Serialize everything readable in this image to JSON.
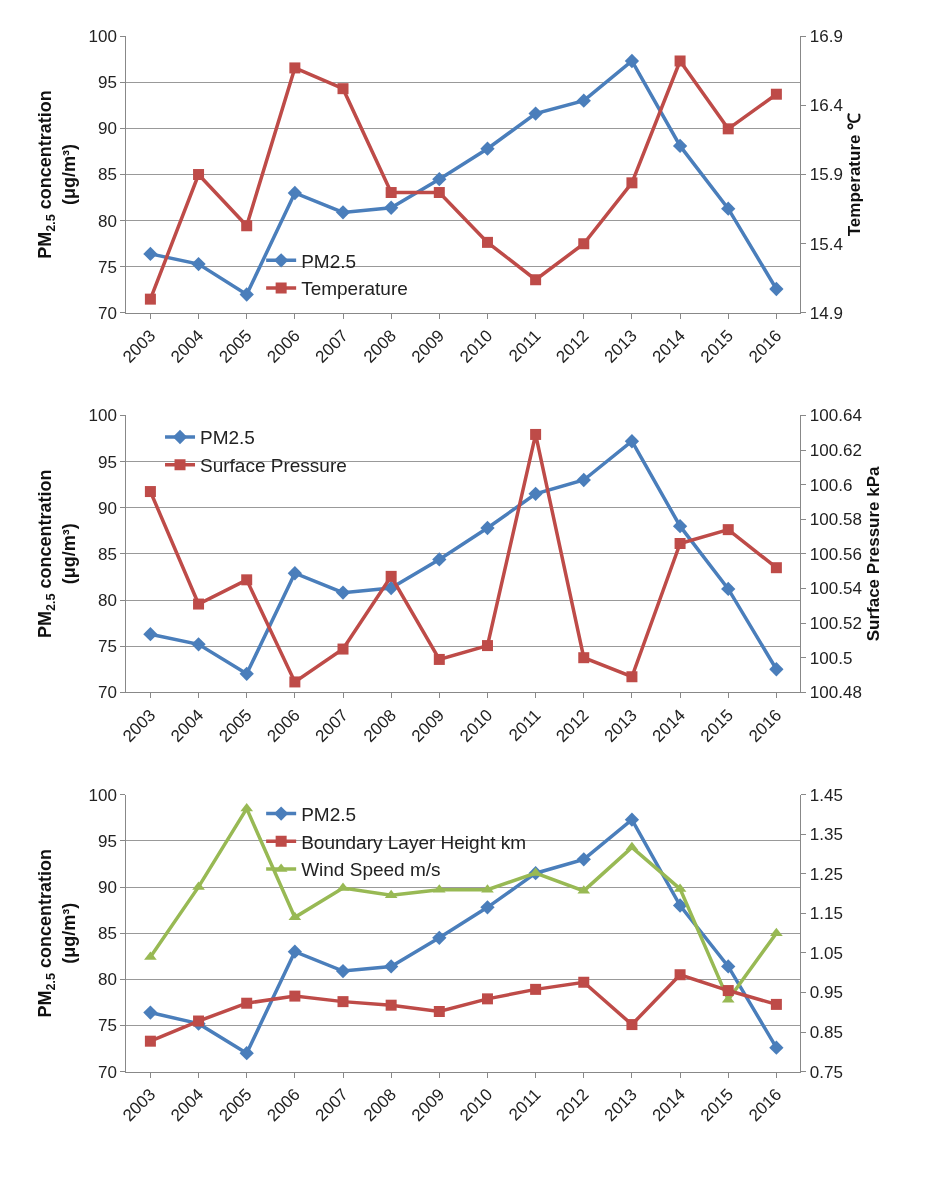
{
  "chart_data": [
    {
      "type": "line",
      "categories": [
        "2003",
        "2004",
        "2005",
        "2006",
        "2007",
        "2008",
        "2009",
        "2010",
        "2011",
        "2012",
        "2013",
        "2014",
        "2015",
        "2016"
      ],
      "ylabel": "PM$_{2.5}$ concentration\n(μg/m³)",
      "y2label": "Temperature ℃",
      "ylim": [
        70,
        100
      ],
      "yticks": [
        70,
        75,
        80,
        85,
        90,
        95,
        100
      ],
      "y2lim": [
        14.9,
        16.9
      ],
      "y2ticks": [
        14.9,
        15.4,
        15.9,
        16.4,
        16.9
      ],
      "grid": "y",
      "legend": "bottom left",
      "line_style": "solid",
      "series": [
        {
          "name": "PM2.5",
          "color": "#4a7ebb",
          "marker": "diamond",
          "values": [
            76.4,
            75.3,
            72.0,
            83.0,
            80.9,
            81.4,
            84.5,
            87.8,
            91.6,
            93.0,
            97.3,
            88.1,
            81.3,
            72.6
          ]
        },
        {
          "name": "Temperature",
          "color": "#be4b48",
          "marker": "square",
          "axis": "y2",
          "values": [
            15.0,
            15.9,
            15.53,
            16.67,
            16.52,
            15.77,
            15.77,
            15.41,
            15.14,
            15.4,
            15.84,
            16.72,
            16.23,
            16.48
          ]
        }
      ]
    },
    {
      "type": "line",
      "categories": [
        "2003",
        "2004",
        "2005",
        "2006",
        "2007",
        "2008",
        "2009",
        "2010",
        "2011",
        "2012",
        "2013",
        "2014",
        "2015",
        "2016"
      ],
      "ylabel": "PM$_{2.5}$ concentration\n(μg/m³)",
      "y2label": "Surface Pressure kPa",
      "ylim": [
        70,
        100
      ],
      "yticks": [
        70,
        75,
        80,
        85,
        90,
        95,
        100
      ],
      "y2lim": [
        100.48,
        100.64
      ],
      "y2ticks": [
        100.48,
        100.5,
        100.52,
        100.54,
        100.56,
        100.58,
        100.6,
        100.62,
        100.64
      ],
      "grid": "y",
      "legend": "top left",
      "line_style": "solid",
      "series": [
        {
          "name": "PM2.5",
          "color": "#4a7ebb",
          "marker": "diamond",
          "values": [
            76.3,
            75.2,
            72.0,
            82.9,
            80.8,
            81.3,
            84.4,
            87.8,
            91.5,
            93.0,
            97.2,
            88.0,
            81.2,
            72.5
          ]
        },
        {
          "name": "Surface Pressure",
          "color": "#be4b48",
          "marker": "square",
          "axis": "y2",
          "values": [
            100.596,
            100.531,
            100.545,
            100.486,
            100.505,
            100.547,
            100.499,
            100.507,
            100.629,
            100.5,
            100.489,
            100.566,
            100.574,
            100.552
          ]
        }
      ]
    },
    {
      "type": "line",
      "categories": [
        "2003",
        "2004",
        "2005",
        "2006",
        "2007",
        "2008",
        "2009",
        "2010",
        "2011",
        "2012",
        "2013",
        "2014",
        "2015",
        "2016"
      ],
      "ylabel": "PM$_{2.5}$ concentration\n(μg/m³)",
      "ylim": [
        70,
        100
      ],
      "yticks": [
        70,
        75,
        80,
        85,
        90,
        95,
        100
      ],
      "y2lim": [
        0.75,
        1.45
      ],
      "y2ticks": [
        0.75,
        0.85,
        0.95,
        1.05,
        1.15,
        1.25,
        1.35,
        1.45
      ],
      "grid": "y",
      "legend": "top",
      "line_style": "solid",
      "series": [
        {
          "name": "PM2.5",
          "color": "#4a7ebb",
          "marker": "diamond",
          "values": [
            76.4,
            75.2,
            72.0,
            83.0,
            80.9,
            81.4,
            84.5,
            87.8,
            91.5,
            93.0,
            97.3,
            88.0,
            81.4,
            72.6
          ]
        },
        {
          "name": "Boundary Layer Height km",
          "color": "#be4b48",
          "marker": "square",
          "axis": "y2",
          "values": [
            0.827,
            0.878,
            0.923,
            0.941,
            0.927,
            0.918,
            0.902,
            0.934,
            0.958,
            0.976,
            0.869,
            0.995,
            0.955,
            0.92
          ]
        },
        {
          "name": "Wind Speed m/s",
          "color": "#98b954",
          "marker": "triangle",
          "axis": "y2",
          "values": [
            1.04,
            1.217,
            1.415,
            1.14,
            1.214,
            1.196,
            1.21,
            1.21,
            1.252,
            1.207,
            1.317,
            1.212,
            0.932,
            1.1
          ]
        }
      ]
    }
  ]
}
